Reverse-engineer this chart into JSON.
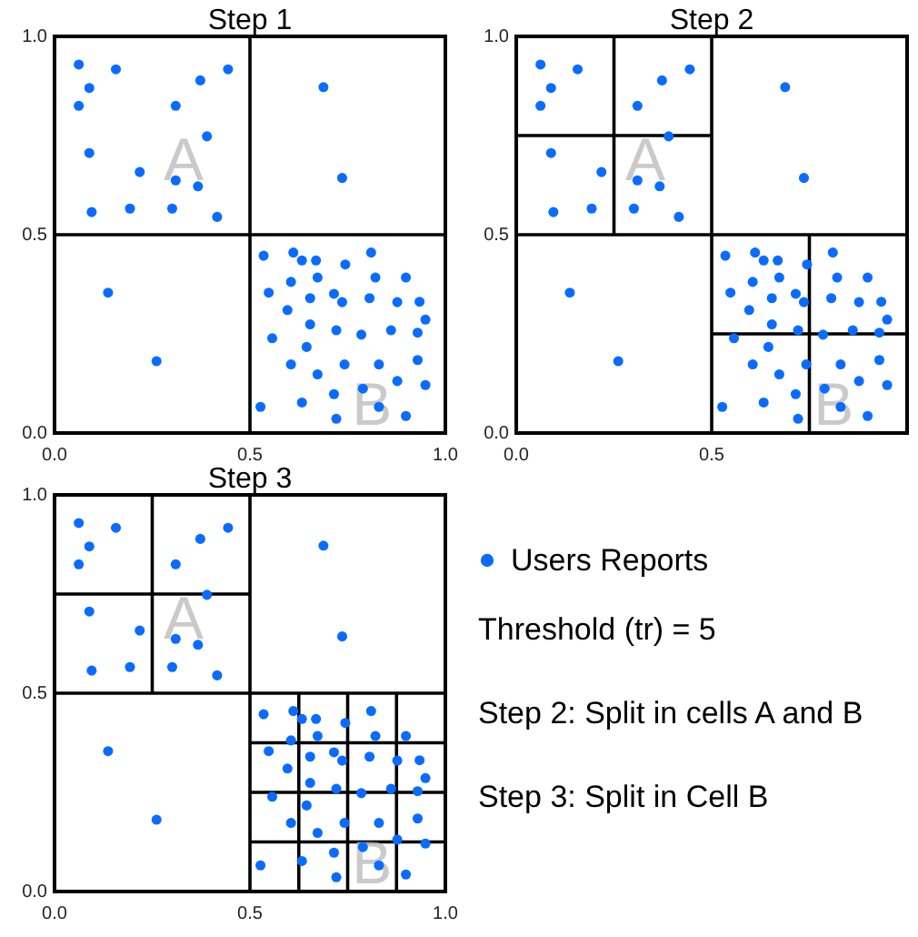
{
  "chart_data": [
    {
      "type": "scatter",
      "title": "Step 1",
      "xlim": [
        0,
        1
      ],
      "ylim": [
        0,
        1
      ],
      "xticks": [
        {
          "value": 0,
          "label": "0.0"
        },
        {
          "value": 0.5,
          "label": "0.5"
        },
        {
          "value": 1,
          "label": "1.0"
        }
      ],
      "yticks": [
        {
          "value": 0,
          "label": "0.0"
        },
        {
          "value": 0.5,
          "label": "0.5"
        },
        {
          "value": 1,
          "label": "1.0"
        }
      ],
      "annotations": [
        "A",
        "B"
      ],
      "series": [
        {
          "marker": "circle",
          "color": "#0a6cff",
          "x": [
            0.062,
            0.157,
            0.089,
            0.062,
            0.373,
            0.444,
            0.31,
            0.39,
            0.089,
            0.218,
            0.31,
            0.367,
            0.095,
            0.193,
            0.301,
            0.416,
            0.688,
            0.736,
            0.137,
            0.261,
            0.535,
            0.611,
            0.633,
            0.669,
            0.81,
            0.744,
            0.673,
            0.605,
            0.821,
            0.899,
            0.548,
            0.654,
            0.715,
            0.736,
            0.806,
            0.877,
            0.934,
            0.596,
            0.949,
            0.654,
            0.721,
            0.785,
            0.861,
            0.929,
            0.557,
            0.645,
            0.605,
            0.742,
            0.83,
            0.929,
            0.673,
            0.877,
            0.949,
            0.789,
            0.715,
            0.633,
            0.83,
            0.527,
            0.899,
            0.721
          ],
          "values": [
            0.929,
            0.917,
            0.87,
            0.825,
            0.889,
            0.917,
            0.825,
            0.748,
            0.706,
            0.658,
            0.637,
            0.622,
            0.557,
            0.566,
            0.566,
            0.545,
            0.872,
            0.643,
            0.354,
            0.181,
            0.447,
            0.455,
            0.435,
            0.435,
            0.455,
            0.425,
            0.392,
            0.381,
            0.392,
            0.392,
            0.354,
            0.34,
            0.351,
            0.33,
            0.34,
            0.33,
            0.331,
            0.31,
            0.286,
            0.274,
            0.259,
            0.248,
            0.259,
            0.253,
            0.239,
            0.217,
            0.173,
            0.173,
            0.173,
            0.184,
            0.148,
            0.131,
            0.121,
            0.112,
            0.098,
            0.077,
            0.066,
            0.066,
            0.043,
            0.036
          ]
        },
        {
          "type": "line",
          "color": "#000000",
          "x": [
            0.5,
            0.5
          ],
          "values": [
            0,
            1
          ]
        },
        {
          "type": "line",
          "color": "#000000",
          "x": [
            0,
            1
          ],
          "values": [
            0.5,
            0.5
          ]
        }
      ]
    },
    {
      "type": "scatter",
      "title": "Step 2",
      "xlim": [
        0,
        1
      ],
      "ylim": [
        0,
        1
      ],
      "xticks": [
        {
          "value": 0,
          "label": "0.0"
        },
        {
          "value": 0.5,
          "label": "0.5"
        }
      ],
      "yticks": [
        {
          "value": 0,
          "label": "0.0"
        },
        {
          "value": 0.5,
          "label": "0.5"
        },
        {
          "value": 1,
          "label": "1.0"
        }
      ],
      "annotations": [
        "A",
        "B"
      ],
      "series": [
        {
          "marker": "circle",
          "color": "#0a6cff",
          "x": [
            0.062,
            0.157,
            0.089,
            0.062,
            0.373,
            0.444,
            0.31,
            0.39,
            0.089,
            0.218,
            0.31,
            0.367,
            0.095,
            0.193,
            0.301,
            0.416,
            0.688,
            0.736,
            0.137,
            0.261,
            0.535,
            0.611,
            0.633,
            0.669,
            0.81,
            0.744,
            0.673,
            0.605,
            0.821,
            0.899,
            0.548,
            0.654,
            0.715,
            0.736,
            0.806,
            0.877,
            0.934,
            0.596,
            0.949,
            0.654,
            0.721,
            0.785,
            0.861,
            0.929,
            0.557,
            0.645,
            0.605,
            0.742,
            0.83,
            0.929,
            0.673,
            0.877,
            0.949,
            0.789,
            0.715,
            0.633,
            0.83,
            0.527,
            0.899,
            0.721
          ],
          "values": [
            0.929,
            0.917,
            0.87,
            0.825,
            0.889,
            0.917,
            0.825,
            0.748,
            0.706,
            0.658,
            0.637,
            0.622,
            0.557,
            0.566,
            0.566,
            0.545,
            0.872,
            0.643,
            0.354,
            0.181,
            0.447,
            0.455,
            0.435,
            0.435,
            0.455,
            0.425,
            0.392,
            0.381,
            0.392,
            0.392,
            0.354,
            0.34,
            0.351,
            0.33,
            0.34,
            0.33,
            0.331,
            0.31,
            0.286,
            0.274,
            0.259,
            0.248,
            0.259,
            0.253,
            0.239,
            0.217,
            0.173,
            0.173,
            0.173,
            0.184,
            0.148,
            0.131,
            0.121,
            0.112,
            0.098,
            0.077,
            0.066,
            0.066,
            0.043,
            0.036
          ]
        },
        {
          "type": "line",
          "color": "#000000",
          "x": [
            0.5,
            0.5
          ],
          "values": [
            0,
            1
          ]
        },
        {
          "type": "line",
          "color": "#000000",
          "x": [
            0,
            1
          ],
          "values": [
            0.5,
            0.5
          ]
        },
        {
          "type": "line",
          "color": "#000000",
          "x": [
            0.25,
            0.25
          ],
          "values": [
            0.5,
            1
          ]
        },
        {
          "type": "line",
          "color": "#000000",
          "x": [
            0,
            0.5
          ],
          "values": [
            0.75,
            0.75
          ]
        },
        {
          "type": "line",
          "color": "#000000",
          "x": [
            0.75,
            0.75
          ],
          "values": [
            0,
            0.5
          ]
        },
        {
          "type": "line",
          "color": "#000000",
          "x": [
            0.5,
            1
          ],
          "values": [
            0.25,
            0.25
          ]
        }
      ]
    },
    {
      "type": "scatter",
      "title": "Step 3",
      "xlim": [
        0,
        1
      ],
      "ylim": [
        0,
        1
      ],
      "xticks": [
        {
          "value": 0,
          "label": "0.0"
        },
        {
          "value": 0.5,
          "label": "0.5"
        },
        {
          "value": 1,
          "label": "1.0"
        }
      ],
      "yticks": [
        {
          "value": 0,
          "label": "0.0"
        },
        {
          "value": 0.5,
          "label": "0.5"
        },
        {
          "value": 1,
          "label": "1.0"
        }
      ],
      "legend": "right",
      "annotations": [
        "A",
        "B",
        "Threshold (tr) = 5",
        "Step 2: Split in cells A and B",
        "Step 3: Split in Cell B"
      ],
      "series": [
        {
          "name": "Users Reports",
          "marker": "circle",
          "color": "#0a6cff",
          "x": [
            0.062,
            0.157,
            0.089,
            0.062,
            0.373,
            0.444,
            0.31,
            0.39,
            0.089,
            0.218,
            0.31,
            0.367,
            0.095,
            0.193,
            0.301,
            0.416,
            0.688,
            0.736,
            0.137,
            0.261,
            0.535,
            0.611,
            0.633,
            0.669,
            0.81,
            0.744,
            0.673,
            0.605,
            0.821,
            0.899,
            0.548,
            0.654,
            0.715,
            0.736,
            0.806,
            0.877,
            0.934,
            0.596,
            0.949,
            0.654,
            0.721,
            0.785,
            0.861,
            0.929,
            0.557,
            0.645,
            0.605,
            0.742,
            0.83,
            0.929,
            0.673,
            0.877,
            0.949,
            0.789,
            0.715,
            0.633,
            0.83,
            0.527,
            0.899,
            0.721
          ],
          "values": [
            0.929,
            0.917,
            0.87,
            0.825,
            0.889,
            0.917,
            0.825,
            0.748,
            0.706,
            0.658,
            0.637,
            0.622,
            0.557,
            0.566,
            0.566,
            0.545,
            0.872,
            0.643,
            0.354,
            0.181,
            0.447,
            0.455,
            0.435,
            0.435,
            0.455,
            0.425,
            0.392,
            0.381,
            0.392,
            0.392,
            0.354,
            0.34,
            0.351,
            0.33,
            0.34,
            0.33,
            0.331,
            0.31,
            0.286,
            0.274,
            0.259,
            0.248,
            0.259,
            0.253,
            0.239,
            0.217,
            0.173,
            0.173,
            0.173,
            0.184,
            0.148,
            0.131,
            0.121,
            0.112,
            0.098,
            0.077,
            0.066,
            0.066,
            0.043,
            0.036
          ]
        },
        {
          "type": "line",
          "color": "#000000",
          "x": [
            0.5,
            0.5
          ],
          "values": [
            0,
            1
          ]
        },
        {
          "type": "line",
          "color": "#000000",
          "x": [
            0,
            1
          ],
          "values": [
            0.5,
            0.5
          ]
        },
        {
          "type": "line",
          "color": "#000000",
          "x": [
            0.25,
            0.25
          ],
          "values": [
            0.5,
            1
          ]
        },
        {
          "type": "line",
          "color": "#000000",
          "x": [
            0,
            0.5
          ],
          "values": [
            0.75,
            0.75
          ]
        },
        {
          "type": "line",
          "color": "#000000",
          "x": [
            0.625,
            0.625
          ],
          "values": [
            0,
            0.5
          ]
        },
        {
          "type": "line",
          "color": "#000000",
          "x": [
            0.75,
            0.75
          ],
          "values": [
            0,
            0.5
          ]
        },
        {
          "type": "line",
          "color": "#000000",
          "x": [
            0.875,
            0.875
          ],
          "values": [
            0,
            0.5
          ]
        },
        {
          "type": "line",
          "color": "#000000",
          "x": [
            0.5,
            1
          ],
          "values": [
            0.125,
            0.125
          ]
        },
        {
          "type": "line",
          "color": "#000000",
          "x": [
            0.5,
            1
          ],
          "values": [
            0.25,
            0.25
          ]
        },
        {
          "type": "line",
          "color": "#000000",
          "x": [
            0.5,
            1
          ],
          "values": [
            0.375,
            0.375
          ]
        }
      ]
    }
  ]
}
